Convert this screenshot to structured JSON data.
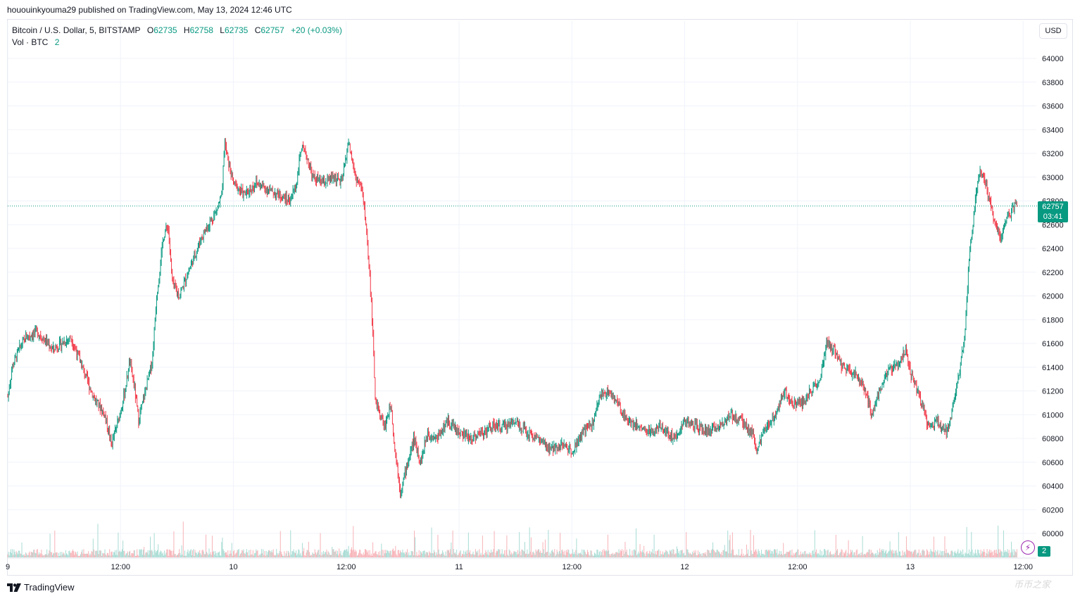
{
  "header": {
    "publish_line": "hououinkyouma29 published on TradingView.com, May 13, 2024 12:46 UTC"
  },
  "legend": {
    "symbol": "Bitcoin / U.S. Dollar, 5, BITSTAMP",
    "o_label": "O",
    "o_value": "62735",
    "h_label": "H",
    "h_value": "62758",
    "l_label": "L",
    "l_value": "62735",
    "c_label": "C",
    "c_value": "62757",
    "change": "+20 (+0.03%)",
    "vol_label": "Vol · BTC",
    "vol_value": "2"
  },
  "toolbar": {
    "currency_button": "USD"
  },
  "last_price": {
    "price": "62757",
    "countdown": "03:41",
    "volume": "2"
  },
  "footer": {
    "logo_text": "TradingView",
    "watermark": "币币之家"
  },
  "colors": {
    "up": "#089981",
    "down": "#f23645",
    "up_vol": "#a8dcd4",
    "down_vol": "#f7b3b8",
    "grid": "#f0f3fa",
    "axis_text": "#131722"
  },
  "icons": {
    "alert": "bolt-icon",
    "logo": "tradingview-logo-icon"
  },
  "chart_data": {
    "type": "candlestick",
    "symbol": "BTCUSD",
    "interval": "5",
    "exchange": "BITSTAMP",
    "ylim": [
      59850,
      64150
    ],
    "y_ticks": [
      60000,
      60200,
      60400,
      60600,
      60800,
      61000,
      61200,
      61400,
      61600,
      61800,
      62000,
      62200,
      62400,
      62600,
      62800,
      63000,
      63200,
      63400,
      63600,
      63800,
      64000
    ],
    "x_ticks": [
      {
        "label": "9",
        "pos": 0.0
      },
      {
        "label": "12:00",
        "pos": 0.5
      },
      {
        "label": "10",
        "pos": 1.0
      },
      {
        "label": "12:00",
        "pos": 1.5
      },
      {
        "label": "11",
        "pos": 2.0
      },
      {
        "label": "12:00",
        "pos": 2.5
      },
      {
        "label": "12",
        "pos": 3.0
      },
      {
        "label": "12:00",
        "pos": 3.5
      },
      {
        "label": "13",
        "pos": 4.0
      },
      {
        "label": "12:00",
        "pos": 4.5
      }
    ],
    "last_price": 62757,
    "price_path": [
      [
        0.0,
        61150
      ],
      [
        0.02,
        61400
      ],
      [
        0.05,
        61550
      ],
      [
        0.08,
        61650
      ],
      [
        0.13,
        61700
      ],
      [
        0.2,
        61550
      ],
      [
        0.28,
        61650
      ],
      [
        0.33,
        61400
      ],
      [
        0.38,
        61150
      ],
      [
        0.43,
        61000
      ],
      [
        0.46,
        60750
      ],
      [
        0.49,
        60950
      ],
      [
        0.52,
        61200
      ],
      [
        0.54,
        61450
      ],
      [
        0.56,
        61250
      ],
      [
        0.58,
        60950
      ],
      [
        0.61,
        61200
      ],
      [
        0.64,
        61450
      ],
      [
        0.66,
        62000
      ],
      [
        0.69,
        62500
      ],
      [
        0.71,
        62600
      ],
      [
        0.73,
        62100
      ],
      [
        0.76,
        62000
      ],
      [
        0.79,
        62150
      ],
      [
        0.82,
        62300
      ],
      [
        0.86,
        62500
      ],
      [
        0.89,
        62600
      ],
      [
        0.92,
        62700
      ],
      [
        0.95,
        62850
      ],
      [
        0.96,
        63300
      ],
      [
        0.98,
        63100
      ],
      [
        1.0,
        62950
      ],
      [
        1.05,
        62850
      ],
      [
        1.1,
        62950
      ],
      [
        1.15,
        62900
      ],
      [
        1.2,
        62850
      ],
      [
        1.25,
        62800
      ],
      [
        1.28,
        62950
      ],
      [
        1.3,
        63250
      ],
      [
        1.33,
        63150
      ],
      [
        1.35,
        63000
      ],
      [
        1.4,
        62950
      ],
      [
        1.45,
        63000
      ],
      [
        1.48,
        62950
      ],
      [
        1.51,
        63300
      ],
      [
        1.54,
        63000
      ],
      [
        1.57,
        62900
      ],
      [
        1.59,
        62550
      ],
      [
        1.61,
        62000
      ],
      [
        1.63,
        61100
      ],
      [
        1.65,
        61000
      ],
      [
        1.67,
        60900
      ],
      [
        1.7,
        61100
      ],
      [
        1.71,
        60800
      ],
      [
        1.74,
        60350
      ],
      [
        1.76,
        60500
      ],
      [
        1.8,
        60800
      ],
      [
        1.83,
        60600
      ],
      [
        1.86,
        60850
      ],
      [
        1.9,
        60800
      ],
      [
        1.95,
        60950
      ],
      [
        2.0,
        60850
      ],
      [
        2.05,
        60800
      ],
      [
        2.1,
        60850
      ],
      [
        2.15,
        60900
      ],
      [
        2.2,
        60900
      ],
      [
        2.25,
        60950
      ],
      [
        2.3,
        60850
      ],
      [
        2.35,
        60800
      ],
      [
        2.4,
        60700
      ],
      [
        2.45,
        60750
      ],
      [
        2.5,
        60700
      ],
      [
        2.55,
        60850
      ],
      [
        2.6,
        60950
      ],
      [
        2.62,
        61150
      ],
      [
        2.66,
        61200
      ],
      [
        2.7,
        61100
      ],
      [
        2.75,
        60950
      ],
      [
        2.8,
        60900
      ],
      [
        2.85,
        60850
      ],
      [
        2.9,
        60900
      ],
      [
        2.95,
        60800
      ],
      [
        3.0,
        60950
      ],
      [
        3.05,
        60900
      ],
      [
        3.1,
        60850
      ],
      [
        3.15,
        60900
      ],
      [
        3.2,
        61000
      ],
      [
        3.25,
        60950
      ],
      [
        3.3,
        60850
      ],
      [
        3.32,
        60700
      ],
      [
        3.35,
        60850
      ],
      [
        3.4,
        61000
      ],
      [
        3.44,
        61200
      ],
      [
        3.48,
        61100
      ],
      [
        3.52,
        61100
      ],
      [
        3.56,
        61200
      ],
      [
        3.6,
        61300
      ],
      [
        3.63,
        61600
      ],
      [
        3.66,
        61550
      ],
      [
        3.7,
        61400
      ],
      [
        3.75,
        61350
      ],
      [
        3.8,
        61200
      ],
      [
        3.83,
        61000
      ],
      [
        3.86,
        61200
      ],
      [
        3.9,
        61350
      ],
      [
        3.95,
        61450
      ],
      [
        3.98,
        61550
      ],
      [
        4.0,
        61350
      ],
      [
        4.05,
        61100
      ],
      [
        4.08,
        60900
      ],
      [
        4.12,
        60950
      ],
      [
        4.16,
        60850
      ],
      [
        4.2,
        61150
      ],
      [
        4.24,
        61650
      ],
      [
        4.26,
        62300
      ],
      [
        4.29,
        62850
      ],
      [
        4.31,
        63050
      ],
      [
        4.34,
        62900
      ],
      [
        4.37,
        62650
      ],
      [
        4.4,
        62500
      ],
      [
        4.43,
        62650
      ],
      [
        4.46,
        62750
      ],
      [
        4.475,
        62757
      ]
    ]
  }
}
